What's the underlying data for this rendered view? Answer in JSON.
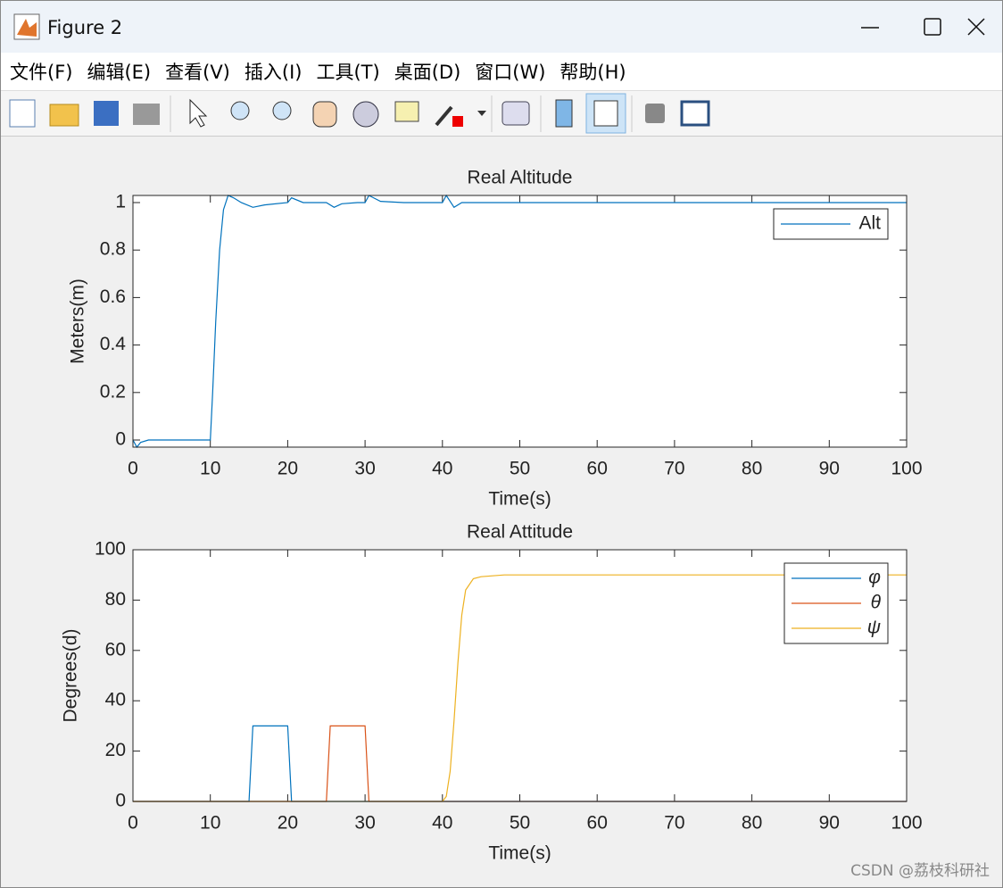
{
  "window": {
    "title": "Figure 2",
    "menus": [
      "文件(F)",
      "编辑(E)",
      "查看(V)",
      "插入(I)",
      "工具(T)",
      "桌面(D)",
      "窗口(W)",
      "帮助(H)"
    ],
    "watermark": "CSDN @荔枝科研社"
  },
  "chart_data": [
    {
      "type": "line",
      "title": "Real Altitude",
      "x_label": "Time(s)",
      "y_label": "Meters(m)",
      "x": [
        0,
        0.5,
        1,
        2,
        10,
        10.3,
        10.7,
        11.2,
        11.7,
        12.3,
        13,
        14,
        15.5,
        17,
        20,
        20.5,
        22,
        25,
        26,
        27,
        29,
        30,
        30.5,
        32,
        35,
        40,
        40.5,
        41.5,
        42.5,
        100
      ],
      "series": [
        {
          "name": "Alt",
          "color": "#0072BD",
          "values": [
            0,
            -0.03,
            -0.01,
            0,
            0,
            0.2,
            0.5,
            0.8,
            0.97,
            1.03,
            1.02,
            1.0,
            0.98,
            0.99,
            1.0,
            1.02,
            1.0,
            1.0,
            0.98,
            0.995,
            1.0,
            1.0,
            1.03,
            1.005,
            1.0,
            1.0,
            1.03,
            0.98,
            1.0,
            1.0
          ]
        }
      ],
      "xlim": [
        0,
        100
      ],
      "xticks": [
        0,
        10,
        20,
        30,
        40,
        50,
        60,
        70,
        80,
        90,
        100
      ],
      "ylim": [
        -0.03,
        1.03
      ],
      "yticks": [
        0,
        0.2,
        0.4,
        0.6,
        0.8,
        1
      ],
      "legend": "northeast"
    },
    {
      "type": "line",
      "title": "Real Attitude",
      "x_label": "Time(s)",
      "y_label": "Degrees(d)",
      "x": [
        0,
        15,
        15.5,
        20,
        20.5,
        25,
        25.5,
        30,
        30.5,
        40,
        40.5,
        41,
        41.5,
        42,
        42.5,
        43,
        44,
        45,
        48,
        100
      ],
      "series": [
        {
          "name": "φ",
          "color": "#0072BD",
          "values": [
            0,
            0,
            30,
            30,
            0,
            0,
            0,
            0,
            0,
            0,
            0,
            0,
            0,
            0,
            0,
            0,
            0,
            0,
            0,
            0
          ]
        },
        {
          "name": "θ",
          "color": "#D95319",
          "values": [
            0,
            0,
            0,
            0,
            0,
            0,
            30,
            30,
            0,
            0,
            0,
            0,
            0,
            0,
            0,
            0,
            0,
            0,
            0,
            0
          ]
        },
        {
          "name": "ψ",
          "color": "#EDB120",
          "values": [
            0,
            0,
            0,
            0,
            0,
            0,
            0,
            0,
            0,
            0,
            2,
            12,
            32,
            55,
            74,
            84,
            88.5,
            89.3,
            90,
            90
          ]
        }
      ],
      "xlim": [
        0,
        100
      ],
      "xticks": [
        0,
        10,
        20,
        30,
        40,
        50,
        60,
        70,
        80,
        90,
        100
      ],
      "ylim": [
        0,
        100
      ],
      "yticks": [
        0,
        20,
        40,
        60,
        80,
        100
      ],
      "legend": "northeast"
    }
  ]
}
